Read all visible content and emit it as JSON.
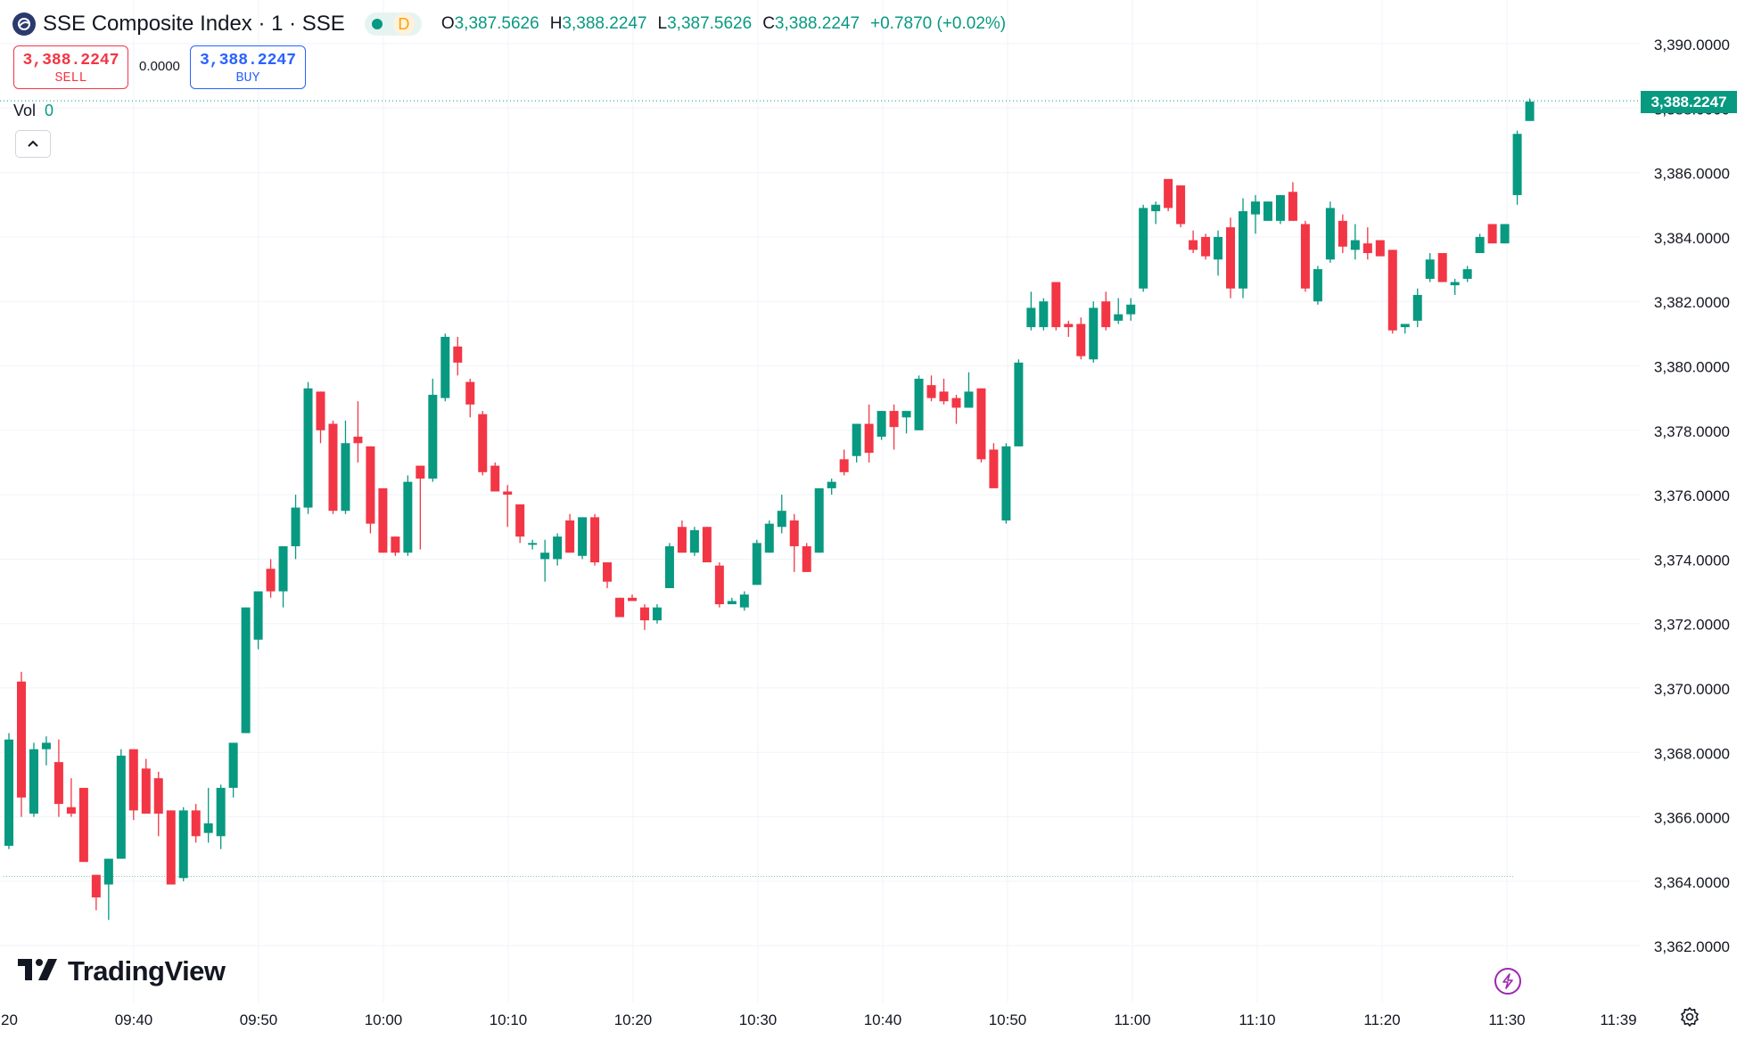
{
  "legend": {
    "title": "SSE Composite Index · 1 · SSE",
    "interval_badge": "D",
    "open_key": "O",
    "open": "3,387.5626",
    "high_key": "H",
    "high": "3,388.2247",
    "low_key": "L",
    "low": "3,387.5626",
    "close_key": "C",
    "close": "3,388.2247",
    "change": "+0.7870 (+0.02%)"
  },
  "trade": {
    "sell_price": "3,388.2247",
    "sell_label": "SELL",
    "spread": "0.0000",
    "buy_price": "3,388.2247",
    "buy_label": "BUY"
  },
  "volume": {
    "label": "Vol",
    "value": "0"
  },
  "last_price_tag": "3,388.2247",
  "branding": {
    "logo_text": "TradingView"
  },
  "colors": {
    "up": "#089981",
    "down": "#f23645",
    "grid": "#f0f3fa",
    "text": "#131722"
  },
  "chart_data": {
    "type": "candlestick",
    "interval": "1 minute",
    "ylim": [
      3361,
      3390.5
    ],
    "y_ticks": [
      "3,390.0000",
      "3,388.0000",
      "3,386.0000",
      "3,384.0000",
      "3,382.0000",
      "3,380.0000",
      "3,378.0000",
      "3,376.0000",
      "3,374.0000",
      "3,372.0000",
      "3,370.0000",
      "3,368.0000",
      "3,366.0000",
      "3,364.0000",
      "3,362.0000"
    ],
    "x_ticks": [
      "09:40",
      "09:50",
      "10:00",
      "10:10",
      "10:20",
      "10:30",
      "10:40",
      "10:50",
      "11:00",
      "11:10",
      "11:20",
      "11:30",
      "11:39"
    ],
    "x_partial_left_label": "20",
    "prev_close": 3364.15,
    "last_price": 3388.2247,
    "candles": [
      {
        "o": 3365.1,
        "h": 3368.6,
        "l": 3365.0,
        "c": 3368.4
      },
      {
        "o": 3370.2,
        "h": 3370.5,
        "l": 3366.0,
        "c": 3366.6
      },
      {
        "o": 3366.1,
        "h": 3368.3,
        "l": 3366.0,
        "c": 3368.1
      },
      {
        "o": 3368.1,
        "h": 3368.5,
        "l": 3367.6,
        "c": 3368.3
      },
      {
        "o": 3367.7,
        "h": 3368.4,
        "l": 3366.0,
        "c": 3366.4
      },
      {
        "o": 3366.3,
        "h": 3367.2,
        "l": 3366.0,
        "c": 3366.1
      },
      {
        "o": 3366.9,
        "h": 3366.9,
        "l": 3364.6,
        "c": 3364.6
      },
      {
        "o": 3364.2,
        "h": 3364.2,
        "l": 3363.1,
        "c": 3363.5
      },
      {
        "o": 3363.9,
        "h": 3364.7,
        "l": 3362.8,
        "c": 3364.7
      },
      {
        "o": 3364.7,
        "h": 3368.1,
        "l": 3364.7,
        "c": 3367.9
      },
      {
        "o": 3368.1,
        "h": 3368.1,
        "l": 3365.9,
        "c": 3366.2
      },
      {
        "o": 3367.5,
        "h": 3367.8,
        "l": 3366.1,
        "c": 3366.1
      },
      {
        "o": 3367.2,
        "h": 3367.4,
        "l": 3365.4,
        "c": 3366.1
      },
      {
        "o": 3366.2,
        "h": 3366.2,
        "l": 3363.9,
        "c": 3363.9
      },
      {
        "o": 3364.1,
        "h": 3366.3,
        "l": 3364.0,
        "c": 3366.2
      },
      {
        "o": 3366.2,
        "h": 3366.4,
        "l": 3365.2,
        "c": 3365.4
      },
      {
        "o": 3365.5,
        "h": 3366.9,
        "l": 3365.2,
        "c": 3365.8
      },
      {
        "o": 3365.4,
        "h": 3367.0,
        "l": 3365.0,
        "c": 3366.9
      },
      {
        "o": 3366.9,
        "h": 3368.3,
        "l": 3366.6,
        "c": 3368.3
      },
      {
        "o": 3368.6,
        "h": 3372.5,
        "l": 3368.6,
        "c": 3372.5
      },
      {
        "o": 3371.5,
        "h": 3373.0,
        "l": 3371.2,
        "c": 3373.0
      },
      {
        "o": 3373.7,
        "h": 3374.0,
        "l": 3372.8,
        "c": 3373.0
      },
      {
        "o": 3373.0,
        "h": 3374.4,
        "l": 3372.5,
        "c": 3374.4
      },
      {
        "o": 3374.4,
        "h": 3376.0,
        "l": 3374.0,
        "c": 3375.6
      },
      {
        "o": 3375.6,
        "h": 3379.5,
        "l": 3375.4,
        "c": 3379.3
      },
      {
        "o": 3379.2,
        "h": 3379.2,
        "l": 3377.6,
        "c": 3378.0
      },
      {
        "o": 3378.2,
        "h": 3378.3,
        "l": 3375.4,
        "c": 3375.5
      },
      {
        "o": 3375.5,
        "h": 3378.3,
        "l": 3375.4,
        "c": 3377.6
      },
      {
        "o": 3377.8,
        "h": 3378.9,
        "l": 3377.0,
        "c": 3377.6
      },
      {
        "o": 3377.5,
        "h": 3377.5,
        "l": 3374.8,
        "c": 3375.1
      },
      {
        "o": 3376.2,
        "h": 3376.2,
        "l": 3374.2,
        "c": 3374.2
      },
      {
        "o": 3374.7,
        "h": 3374.7,
        "l": 3374.1,
        "c": 3374.2
      },
      {
        "o": 3374.2,
        "h": 3376.6,
        "l": 3374.1,
        "c": 3376.4
      },
      {
        "o": 3376.9,
        "h": 3376.9,
        "l": 3374.3,
        "c": 3376.5
      },
      {
        "o": 3376.5,
        "h": 3379.6,
        "l": 3376.4,
        "c": 3379.1
      },
      {
        "o": 3379.0,
        "h": 3381.0,
        "l": 3378.9,
        "c": 3380.9
      },
      {
        "o": 3380.6,
        "h": 3380.9,
        "l": 3379.7,
        "c": 3380.1
      },
      {
        "o": 3379.5,
        "h": 3379.6,
        "l": 3378.4,
        "c": 3378.8
      },
      {
        "o": 3378.5,
        "h": 3378.6,
        "l": 3376.6,
        "c": 3376.7
      },
      {
        "o": 3376.9,
        "h": 3377.0,
        "l": 3376.1,
        "c": 3376.1
      },
      {
        "o": 3376.1,
        "h": 3376.3,
        "l": 3375.0,
        "c": 3376.0
      },
      {
        "o": 3375.7,
        "h": 3375.7,
        "l": 3374.5,
        "c": 3374.7
      },
      {
        "o": 3374.5,
        "h": 3374.6,
        "l": 3374.3,
        "c": 3374.5
      },
      {
        "o": 3374.0,
        "h": 3374.6,
        "l": 3373.3,
        "c": 3374.2
      },
      {
        "o": 3374.0,
        "h": 3374.8,
        "l": 3373.8,
        "c": 3374.7
      },
      {
        "o": 3375.2,
        "h": 3375.4,
        "l": 3374.2,
        "c": 3374.2
      },
      {
        "o": 3374.1,
        "h": 3375.3,
        "l": 3374.0,
        "c": 3375.3
      },
      {
        "o": 3375.3,
        "h": 3375.4,
        "l": 3373.8,
        "c": 3373.9
      },
      {
        "o": 3373.9,
        "h": 3373.9,
        "l": 3373.1,
        "c": 3373.3
      },
      {
        "o": 3372.8,
        "h": 3372.8,
        "l": 3372.2,
        "c": 3372.2
      },
      {
        "o": 3372.8,
        "h": 3372.9,
        "l": 3372.7,
        "c": 3372.7
      },
      {
        "o": 3372.5,
        "h": 3372.6,
        "l": 3371.8,
        "c": 3372.1
      },
      {
        "o": 3372.1,
        "h": 3372.6,
        "l": 3372.0,
        "c": 3372.5
      },
      {
        "o": 3373.1,
        "h": 3374.5,
        "l": 3373.1,
        "c": 3374.4
      },
      {
        "o": 3375.0,
        "h": 3375.2,
        "l": 3374.2,
        "c": 3374.2
      },
      {
        "o": 3374.2,
        "h": 3375.0,
        "l": 3374.1,
        "c": 3374.9
      },
      {
        "o": 3375.0,
        "h": 3375.0,
        "l": 3373.9,
        "c": 3373.9
      },
      {
        "o": 3373.8,
        "h": 3373.9,
        "l": 3372.5,
        "c": 3372.6
      },
      {
        "o": 3372.6,
        "h": 3372.8,
        "l": 3372.6,
        "c": 3372.7
      },
      {
        "o": 3372.5,
        "h": 3373.0,
        "l": 3372.4,
        "c": 3372.9
      },
      {
        "o": 3373.2,
        "h": 3374.6,
        "l": 3373.2,
        "c": 3374.5
      },
      {
        "o": 3374.2,
        "h": 3375.2,
        "l": 3374.2,
        "c": 3375.1
      },
      {
        "o": 3375.0,
        "h": 3376.0,
        "l": 3374.8,
        "c": 3375.5
      },
      {
        "o": 3375.2,
        "h": 3375.4,
        "l": 3373.6,
        "c": 3374.4
      },
      {
        "o": 3374.4,
        "h": 3374.5,
        "l": 3373.6,
        "c": 3373.6
      },
      {
        "o": 3374.2,
        "h": 3376.2,
        "l": 3374.2,
        "c": 3376.2
      },
      {
        "o": 3376.2,
        "h": 3376.5,
        "l": 3376.0,
        "c": 3376.4
      },
      {
        "o": 3377.1,
        "h": 3377.4,
        "l": 3376.6,
        "c": 3376.7
      },
      {
        "o": 3377.2,
        "h": 3378.2,
        "l": 3377.0,
        "c": 3378.2
      },
      {
        "o": 3378.2,
        "h": 3378.8,
        "l": 3377.0,
        "c": 3377.3
      },
      {
        "o": 3377.8,
        "h": 3378.6,
        "l": 3377.7,
        "c": 3378.6
      },
      {
        "o": 3378.6,
        "h": 3378.8,
        "l": 3377.4,
        "c": 3378.1
      },
      {
        "o": 3378.4,
        "h": 3378.6,
        "l": 3377.9,
        "c": 3378.6
      },
      {
        "o": 3378.0,
        "h": 3379.7,
        "l": 3378.0,
        "c": 3379.6
      },
      {
        "o": 3379.4,
        "h": 3379.7,
        "l": 3378.9,
        "c": 3379.0
      },
      {
        "o": 3379.2,
        "h": 3379.6,
        "l": 3378.8,
        "c": 3378.9
      },
      {
        "o": 3379.0,
        "h": 3379.1,
        "l": 3378.2,
        "c": 3378.7
      },
      {
        "o": 3378.7,
        "h": 3379.8,
        "l": 3378.7,
        "c": 3379.2
      },
      {
        "o": 3379.3,
        "h": 3379.3,
        "l": 3377.0,
        "c": 3377.1
      },
      {
        "o": 3377.4,
        "h": 3377.6,
        "l": 3376.2,
        "c": 3376.2
      },
      {
        "o": 3375.2,
        "h": 3377.6,
        "l": 3375.1,
        "c": 3377.5
      },
      {
        "o": 3377.5,
        "h": 3380.2,
        "l": 3377.5,
        "c": 3380.1
      },
      {
        "o": 3381.2,
        "h": 3382.3,
        "l": 3381.1,
        "c": 3381.8
      },
      {
        "o": 3381.2,
        "h": 3382.1,
        "l": 3381.1,
        "c": 3382.0
      },
      {
        "o": 3382.6,
        "h": 3382.6,
        "l": 3381.1,
        "c": 3381.2
      },
      {
        "o": 3381.3,
        "h": 3381.4,
        "l": 3380.9,
        "c": 3381.2
      },
      {
        "o": 3381.3,
        "h": 3381.5,
        "l": 3380.2,
        "c": 3380.3
      },
      {
        "o": 3380.2,
        "h": 3382.0,
        "l": 3380.1,
        "c": 3381.8
      },
      {
        "o": 3382.0,
        "h": 3382.3,
        "l": 3381.1,
        "c": 3381.2
      },
      {
        "o": 3381.4,
        "h": 3382.1,
        "l": 3381.3,
        "c": 3381.6
      },
      {
        "o": 3381.6,
        "h": 3382.1,
        "l": 3381.4,
        "c": 3381.9
      },
      {
        "o": 3382.4,
        "h": 3385.0,
        "l": 3382.3,
        "c": 3384.9
      },
      {
        "o": 3384.8,
        "h": 3385.1,
        "l": 3384.4,
        "c": 3385.0
      },
      {
        "o": 3385.8,
        "h": 3385.8,
        "l": 3384.8,
        "c": 3384.9
      },
      {
        "o": 3385.6,
        "h": 3385.6,
        "l": 3384.3,
        "c": 3384.4
      },
      {
        "o": 3383.9,
        "h": 3384.2,
        "l": 3383.5,
        "c": 3383.6
      },
      {
        "o": 3384.0,
        "h": 3384.1,
        "l": 3383.3,
        "c": 3383.4
      },
      {
        "o": 3383.3,
        "h": 3384.2,
        "l": 3382.8,
        "c": 3384.0
      },
      {
        "o": 3384.3,
        "h": 3384.6,
        "l": 3382.1,
        "c": 3382.4
      },
      {
        "o": 3382.4,
        "h": 3385.2,
        "l": 3382.1,
        "c": 3384.8
      },
      {
        "o": 3384.7,
        "h": 3385.3,
        "l": 3384.1,
        "c": 3385.1
      },
      {
        "o": 3384.5,
        "h": 3385.1,
        "l": 3384.5,
        "c": 3385.1
      },
      {
        "o": 3384.5,
        "h": 3385.3,
        "l": 3384.4,
        "c": 3385.3
      },
      {
        "o": 3385.4,
        "h": 3385.7,
        "l": 3384.5,
        "c": 3384.5
      },
      {
        "o": 3384.4,
        "h": 3384.5,
        "l": 3382.3,
        "c": 3382.4
      },
      {
        "o": 3382.0,
        "h": 3383.1,
        "l": 3381.9,
        "c": 3383.0
      },
      {
        "o": 3383.3,
        "h": 3385.1,
        "l": 3383.2,
        "c": 3384.9
      },
      {
        "o": 3384.5,
        "h": 3384.7,
        "l": 3383.5,
        "c": 3383.7
      },
      {
        "o": 3383.6,
        "h": 3384.4,
        "l": 3383.3,
        "c": 3383.9
      },
      {
        "o": 3383.8,
        "h": 3384.3,
        "l": 3383.3,
        "c": 3383.5
      },
      {
        "o": 3383.9,
        "h": 3383.9,
        "l": 3383.4,
        "c": 3383.4
      },
      {
        "o": 3383.6,
        "h": 3383.6,
        "l": 3381.0,
        "c": 3381.1
      },
      {
        "o": 3381.2,
        "h": 3381.3,
        "l": 3381.0,
        "c": 3381.3
      },
      {
        "o": 3381.4,
        "h": 3382.4,
        "l": 3381.2,
        "c": 3382.2
      },
      {
        "o": 3382.7,
        "h": 3383.5,
        "l": 3382.6,
        "c": 3383.3
      },
      {
        "o": 3383.5,
        "h": 3383.5,
        "l": 3382.6,
        "c": 3382.6
      },
      {
        "o": 3382.5,
        "h": 3382.7,
        "l": 3382.2,
        "c": 3382.6
      },
      {
        "o": 3382.7,
        "h": 3383.1,
        "l": 3382.6,
        "c": 3383.0
      },
      {
        "o": 3383.5,
        "h": 3384.1,
        "l": 3383.5,
        "c": 3384.0
      },
      {
        "o": 3384.4,
        "h": 3384.4,
        "l": 3383.8,
        "c": 3383.8
      },
      {
        "o": 3383.8,
        "h": 3384.4,
        "l": 3383.8,
        "c": 3384.4
      },
      {
        "o": 3385.3,
        "h": 3387.3,
        "l": 3385.0,
        "c": 3387.2
      },
      {
        "o": 3387.6,
        "h": 3388.3,
        "l": 3387.6,
        "c": 3388.2
      }
    ]
  }
}
